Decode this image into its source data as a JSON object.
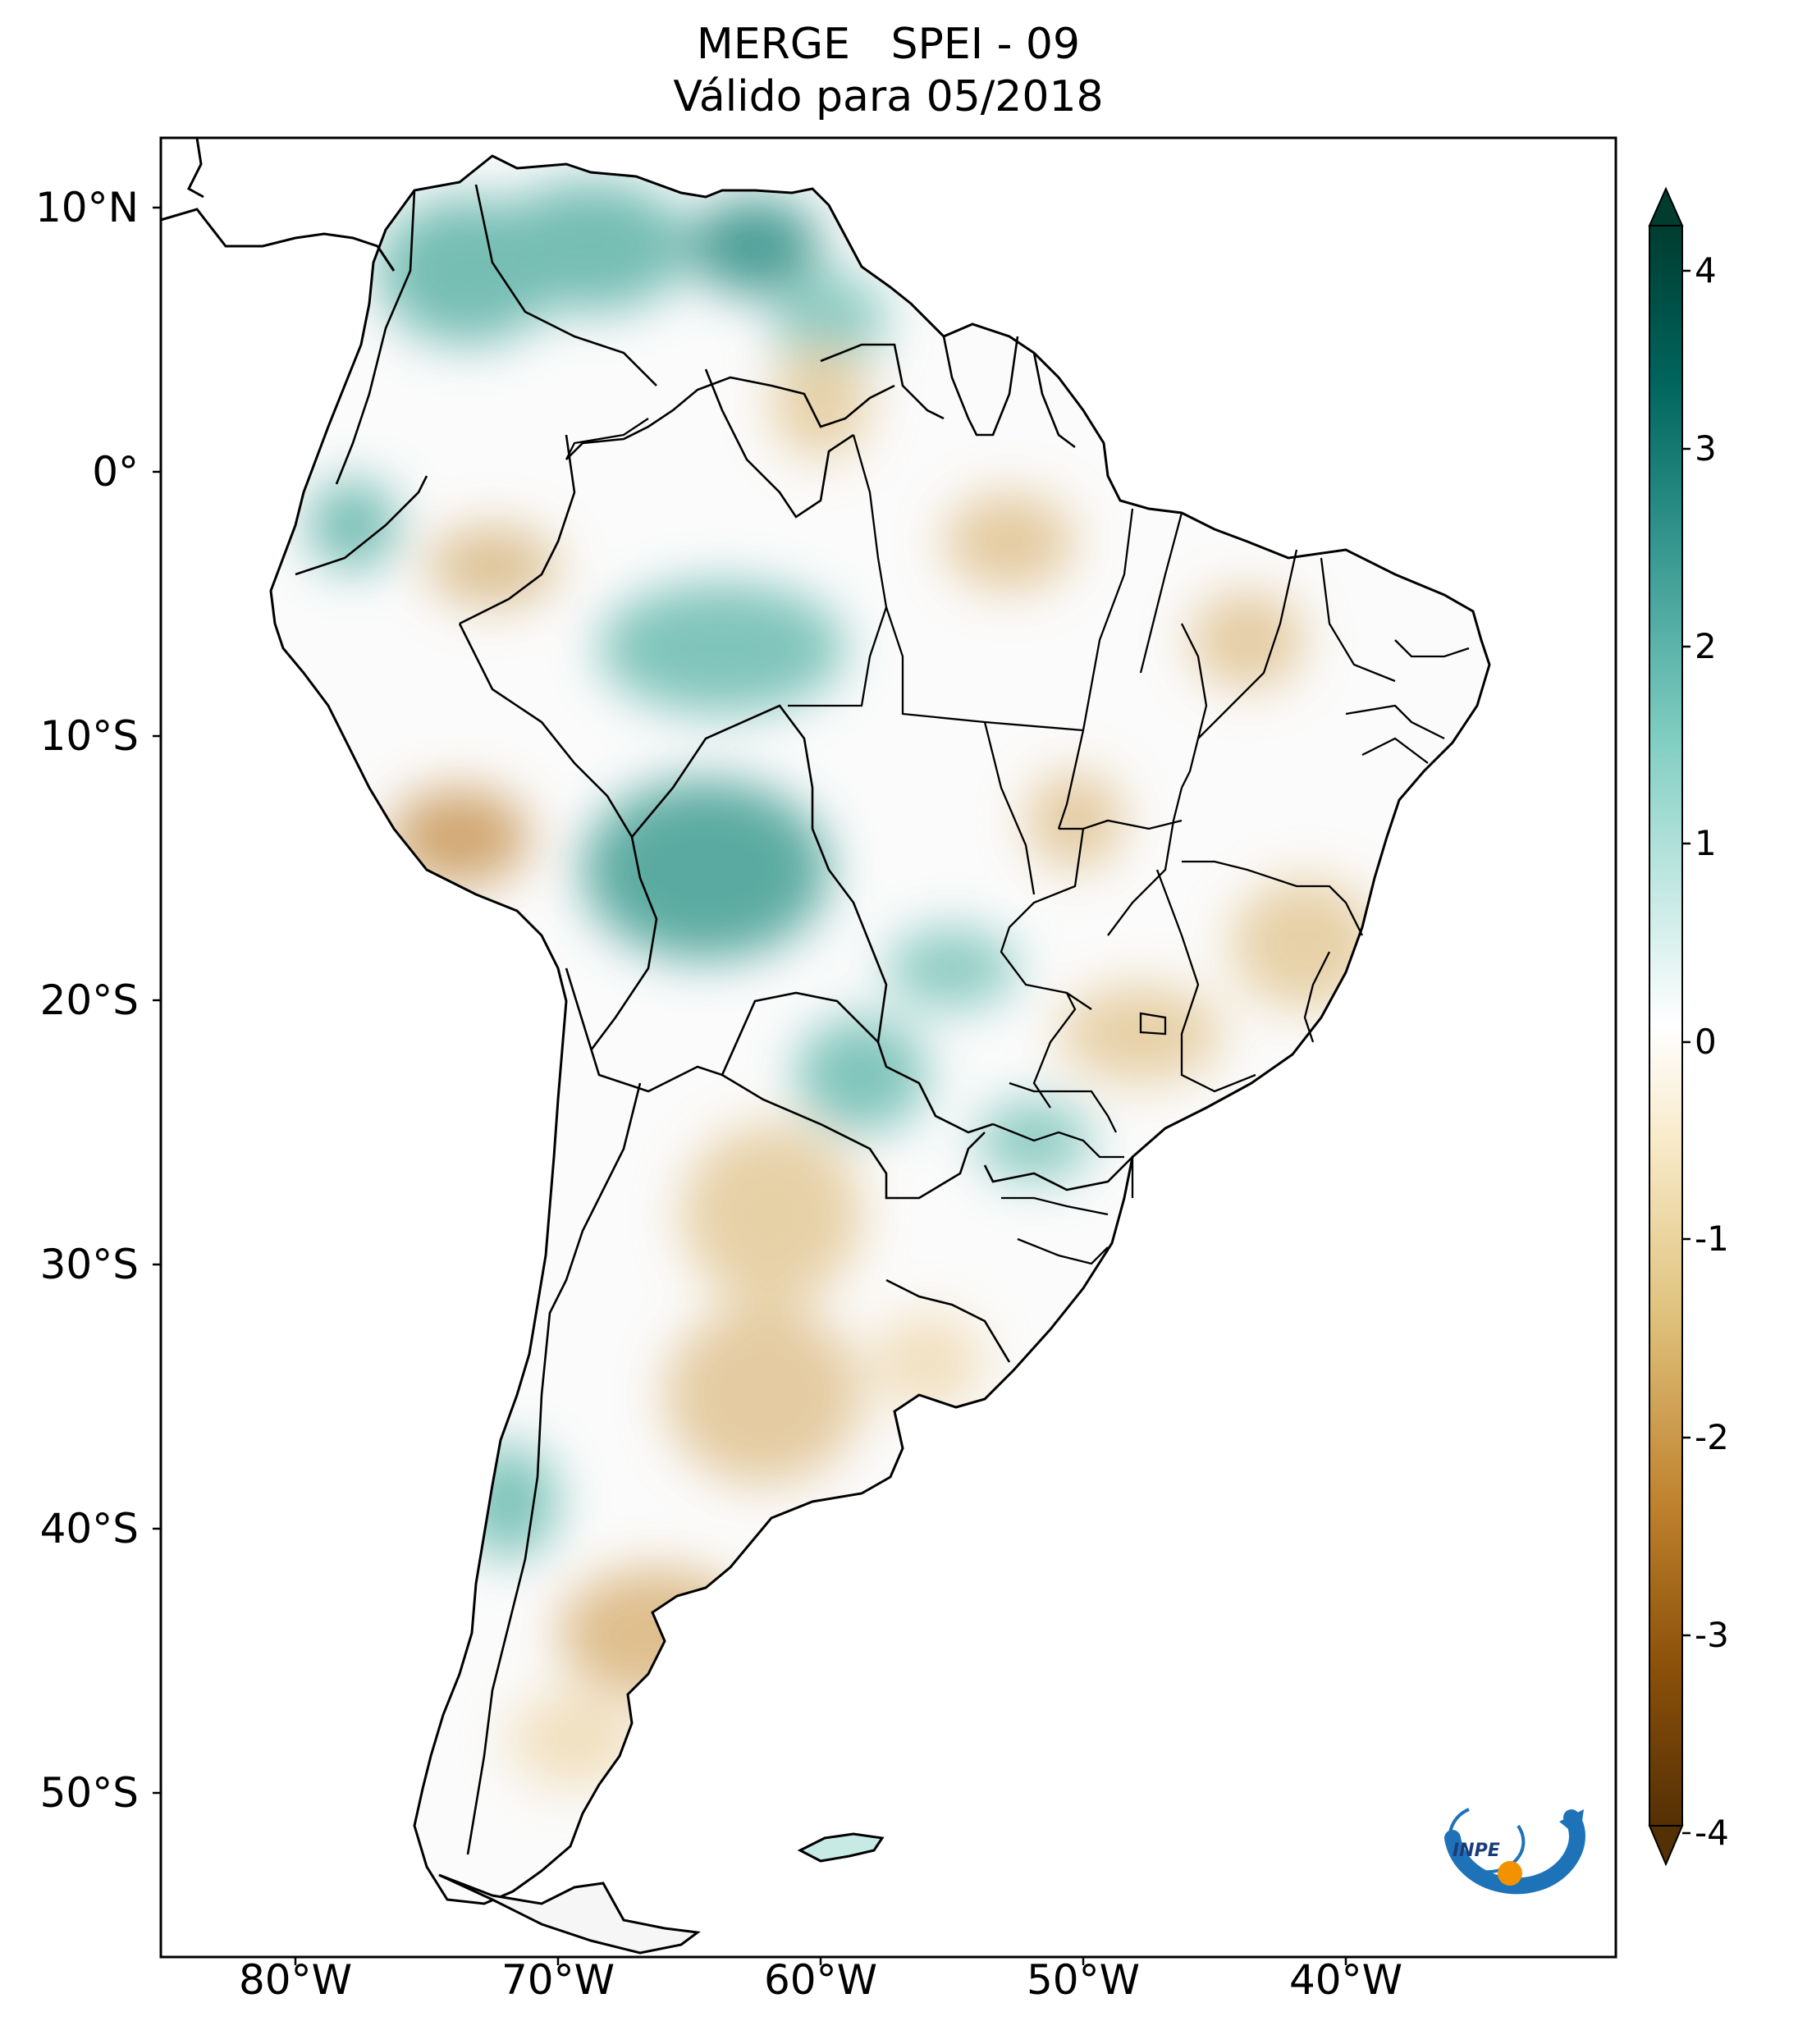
{
  "title": {
    "line1": "MERGE   SPEI - 09",
    "line2": "Válido para 05/2018"
  },
  "lat_ticks": [
    "10°N",
    "0°",
    "10°S",
    "20°S",
    "30°S",
    "40°S",
    "50°S"
  ],
  "lon_ticks": [
    "80°W",
    "70°W",
    "60°W",
    "50°W",
    "40°W"
  ],
  "colorbar": {
    "ticks": [
      "4",
      "3",
      "2",
      "1",
      "0",
      "-1",
      "-2",
      "-3",
      "-4"
    ],
    "range": [
      -4,
      4
    ],
    "colors": [
      "#543005",
      "#8c510a",
      "#bf812d",
      "#dfc27d",
      "#f6e8c3",
      "#ffffff",
      "#c7eae5",
      "#80cdc1",
      "#35978f",
      "#01665e",
      "#003c30"
    ],
    "extend": "both"
  },
  "logo": {
    "text": "INPE"
  },
  "colors": {
    "wet": "#35978f",
    "dry": "#bf812d",
    "neutral": "#ffffff",
    "outline": "#000000"
  }
}
